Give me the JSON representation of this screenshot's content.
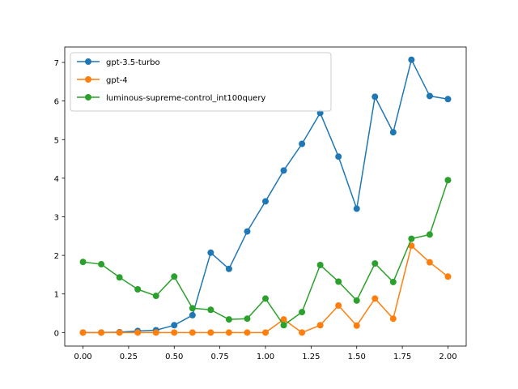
{
  "chart_data": {
    "type": "line",
    "title": "",
    "xlabel": "",
    "ylabel": "",
    "xlim": [
      -0.1,
      2.1
    ],
    "ylim": [
      -0.35,
      7.4
    ],
    "xticks": [
      0.0,
      0.25,
      0.5,
      0.75,
      1.0,
      1.25,
      1.5,
      1.75,
      2.0
    ],
    "xtick_labels": [
      "0.00",
      "0.25",
      "0.50",
      "0.75",
      "1.00",
      "1.25",
      "1.50",
      "1.75",
      "2.00"
    ],
    "yticks": [
      0,
      1,
      2,
      3,
      4,
      5,
      6,
      7
    ],
    "ytick_labels": [
      "0",
      "1",
      "2",
      "3",
      "4",
      "5",
      "6",
      "7"
    ],
    "grid": false,
    "legend_position": "top-left",
    "x": [
      0.0,
      0.1,
      0.2,
      0.3,
      0.4,
      0.5,
      0.6,
      0.7,
      0.8,
      0.9,
      1.0,
      1.1,
      1.2,
      1.3,
      1.4,
      1.5,
      1.6,
      1.7,
      1.8,
      1.9,
      2.0
    ],
    "series": [
      {
        "name": "gpt-3.5-turbo",
        "color": "#1f77b4",
        "values": [
          0.0,
          0.0,
          0.01,
          0.04,
          0.06,
          0.19,
          0.45,
          2.07,
          1.65,
          2.62,
          3.4,
          4.2,
          4.89,
          5.69,
          4.56,
          3.21,
          6.11,
          5.19,
          7.07,
          6.13,
          6.05
        ]
      },
      {
        "name": "gpt-4",
        "color": "#ff7f0e",
        "values": [
          0.0,
          0.0,
          0.0,
          0.0,
          0.0,
          0.0,
          0.0,
          0.0,
          0.0,
          0.0,
          0.0,
          0.34,
          0.0,
          0.19,
          0.7,
          0.18,
          0.88,
          0.36,
          2.25,
          1.82,
          1.45
        ]
      },
      {
        "name": "luminous-supreme-control_int100query",
        "color": "#2ca02c",
        "values": [
          1.83,
          1.77,
          1.43,
          1.12,
          0.95,
          1.45,
          0.63,
          0.59,
          0.34,
          0.36,
          0.88,
          0.19,
          0.53,
          1.75,
          1.32,
          0.83,
          1.79,
          1.31,
          2.43,
          2.54,
          3.95
        ]
      }
    ]
  }
}
